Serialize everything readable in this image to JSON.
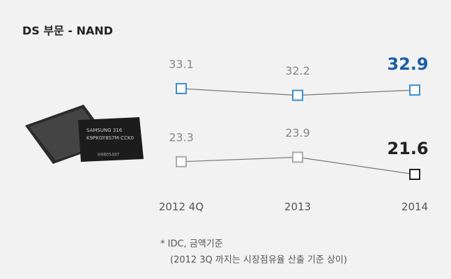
{
  "chart_data": {
    "type": "line",
    "title": "DS 부문 - NAND",
    "categories": [
      "2012 4Q",
      "2013",
      "2014"
    ],
    "series": [
      {
        "color": "#3a8fd0",
        "last_color": "#1b5ea8",
        "values": [
          33.1,
          32.2,
          32.9
        ]
      },
      {
        "color": "#aaaaaa",
        "last_color": "#222222",
        "values": [
          23.3,
          23.9,
          21.6
        ]
      }
    ],
    "notes": [
      "* IDC, 금액기준",
      "(2012 3Q 까지는 시장점유율 산출 기준 상이)"
    ]
  }
}
